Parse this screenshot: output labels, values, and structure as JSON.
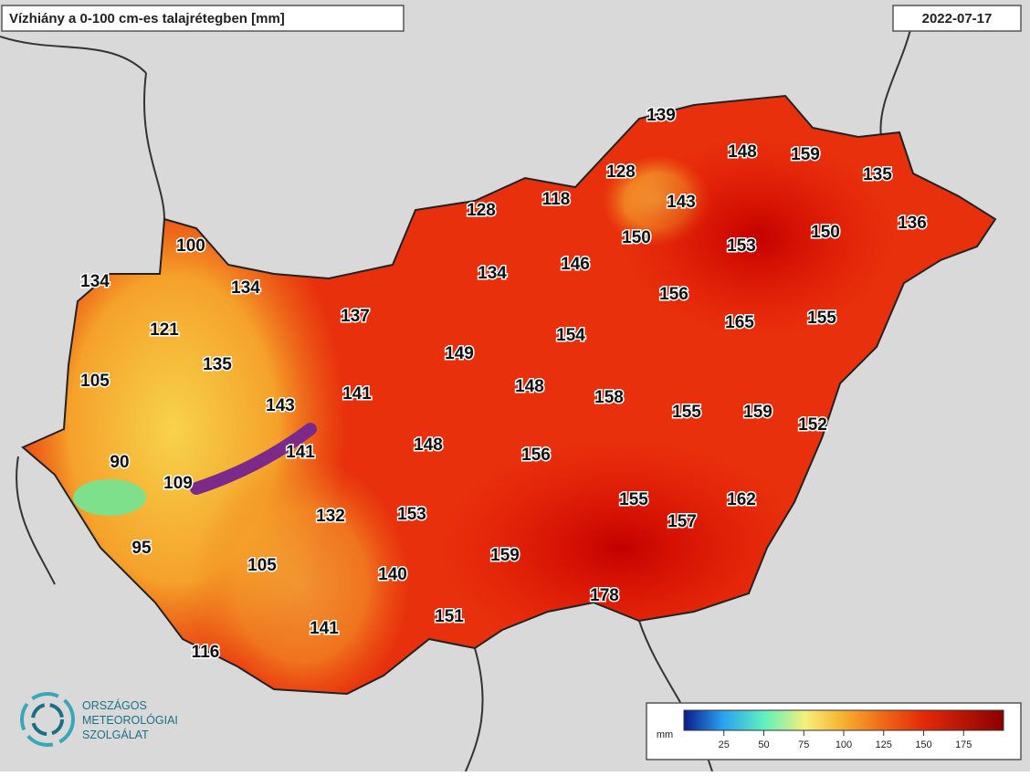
{
  "title": "Vízhiány a 0-100 cm-es talajrétegben [mm]",
  "date": "2022-07-17",
  "values": [
    139,
    148,
    159,
    135,
    128,
    118,
    143,
    128,
    136,
    150,
    153,
    150,
    100,
    134,
    134,
    134,
    146,
    156,
    137,
    121,
    165,
    155,
    154,
    149,
    135,
    105,
    141,
    148,
    158,
    143,
    155,
    159,
    152,
    148,
    141,
    156,
    90,
    109,
    155,
    162,
    132,
    153,
    157,
    95,
    159,
    105,
    140,
    178,
    151,
    141,
    116
  ],
  "legend": {
    "unit": "mm",
    "range": [
      0,
      200
    ],
    "ticks": [
      25,
      50,
      75,
      100,
      125,
      150,
      175
    ]
  },
  "logo": [
    "ORSZÁGOS",
    "METEOROLÓGIAI",
    "SZOLGÁLAT"
  ]
}
